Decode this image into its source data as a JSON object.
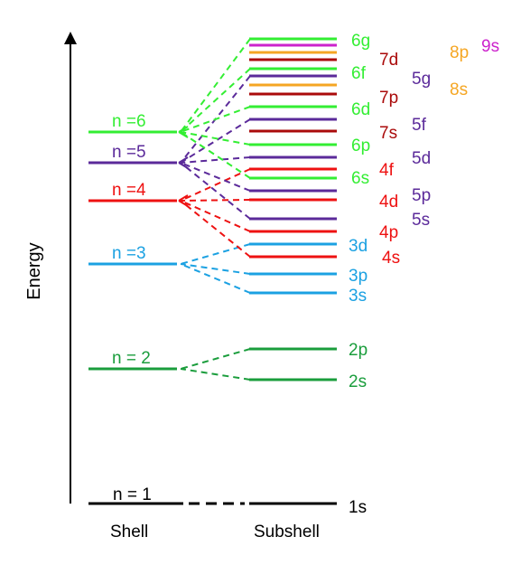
{
  "axis": {
    "ylabel": "Energy"
  },
  "footer": {
    "shell_label": "Shell",
    "subshell_label": "Subshell"
  },
  "colors": {
    "black": "#000000",
    "n2": "#1a9d3c",
    "n3": "#1ba1e2",
    "n4": "#ee1111",
    "n5": "#5b2a9a",
    "n6": "#33ee33",
    "n7": "#aa0a0a",
    "n8": "#f5a623",
    "n9": "#cc22cc"
  },
  "shells": [
    {
      "id": "n1",
      "label": "n = 1",
      "color": "black"
    },
    {
      "id": "n2",
      "label": "n = 2",
      "color": "n2"
    },
    {
      "id": "n3",
      "label": "n =3",
      "color": "n3"
    },
    {
      "id": "n4",
      "label": "n =4",
      "color": "n4"
    },
    {
      "id": "n5",
      "label": "n =5",
      "color": "n5"
    },
    {
      "id": "n6",
      "label": "n =6",
      "color": "n6"
    }
  ],
  "subshell_labels": [
    {
      "text": "1s",
      "color": "black"
    },
    {
      "text": "2s",
      "color": "n2"
    },
    {
      "text": "2p",
      "color": "n2"
    },
    {
      "text": "3s",
      "color": "n3"
    },
    {
      "text": "3p",
      "color": "n3"
    },
    {
      "text": "3d",
      "color": "n3"
    },
    {
      "text": "4s",
      "color": "n4"
    },
    {
      "text": "4p",
      "color": "n4"
    },
    {
      "text": "4d",
      "color": "n4"
    },
    {
      "text": "4f",
      "color": "n4"
    },
    {
      "text": "5s",
      "color": "n5"
    },
    {
      "text": "5p",
      "color": "n5"
    },
    {
      "text": "5d",
      "color": "n5"
    },
    {
      "text": "5f",
      "color": "n5"
    },
    {
      "text": "5g",
      "color": "n5"
    },
    {
      "text": "6s",
      "color": "n6"
    },
    {
      "text": "6p",
      "color": "n6"
    },
    {
      "text": "6d",
      "color": "n6"
    },
    {
      "text": "6f",
      "color": "n6"
    },
    {
      "text": "6g",
      "color": "n6"
    },
    {
      "text": "7s",
      "color": "n7"
    },
    {
      "text": "7p",
      "color": "n7"
    },
    {
      "text": "7d",
      "color": "n7"
    },
    {
      "text": "8s",
      "color": "n8"
    },
    {
      "text": "8p",
      "color": "n8"
    },
    {
      "text": "9s",
      "color": "n9"
    }
  ]
}
